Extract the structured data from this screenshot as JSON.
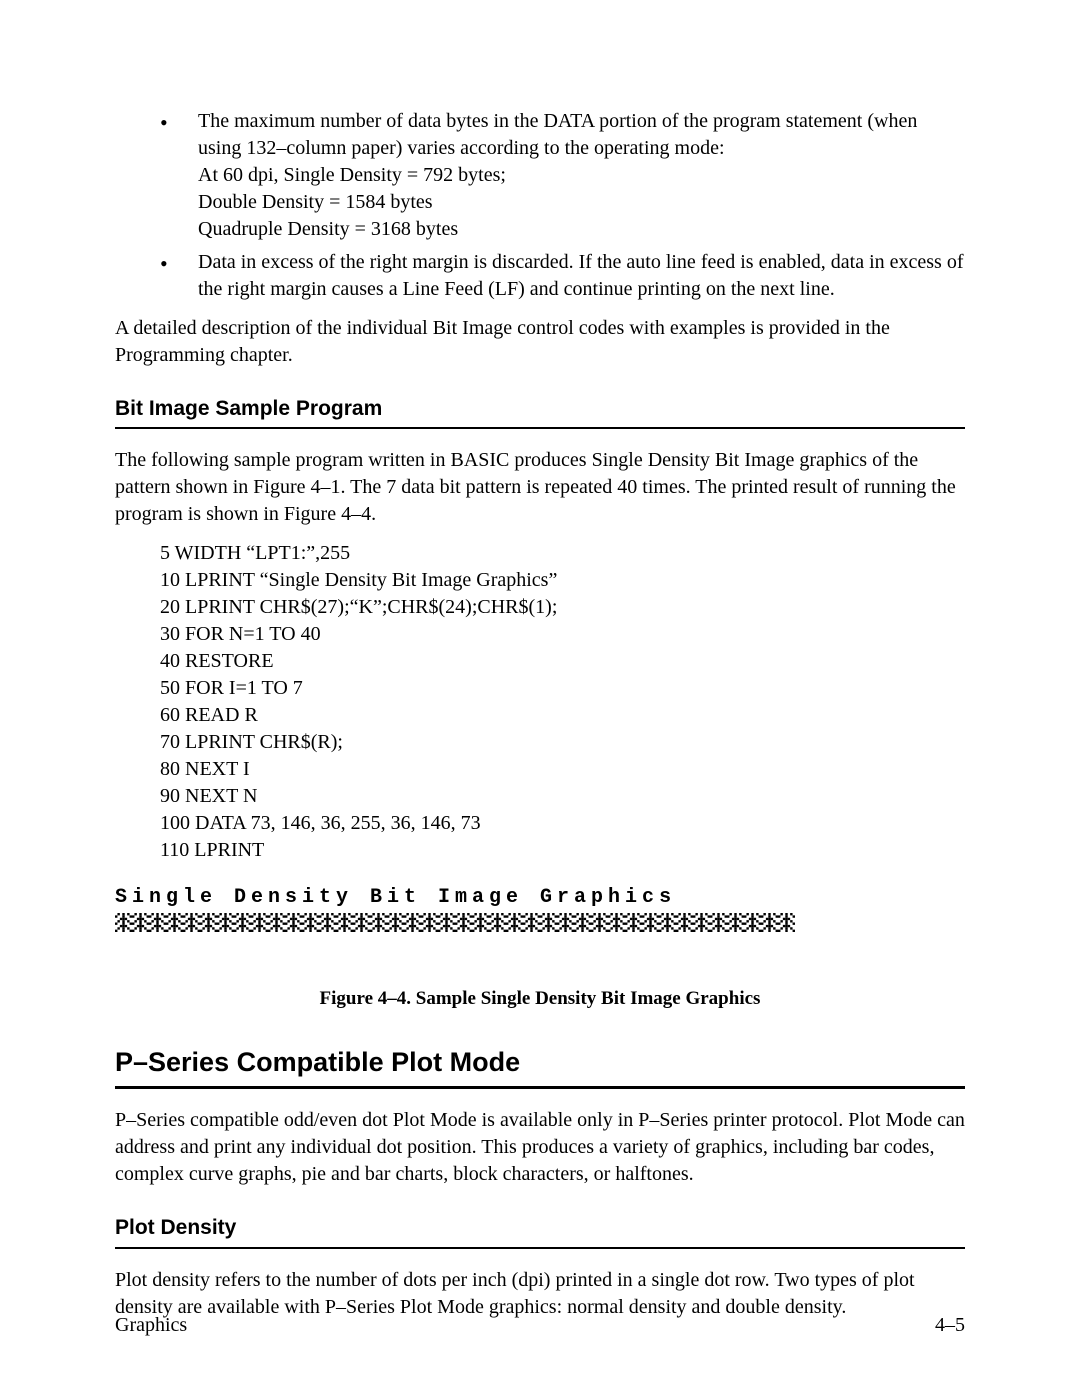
{
  "bullets": [
    {
      "main": "The maximum number of data bytes in the DATA portion of the program statement (when using 132–column paper) varies according to the operating mode:",
      "sub": [
        "At 60 dpi, Single Density = 792 bytes;",
        "Double Density = 1584 bytes",
        "Quadruple Density = 3168 bytes"
      ]
    },
    {
      "main": "Data in excess of the right margin is discarded. If the auto line feed is enabled, data in excess of the right margin causes a Line Feed (LF) and continue printing on the next line.",
      "sub": []
    }
  ],
  "para_after_bullets": "A detailed description of the individual Bit Image control codes with examples is provided in the Programming chapter.",
  "section1_title": "Bit Image Sample Program",
  "section1_para": "The following sample program written in BASIC produces Single Density Bit Image graphics of the pattern shown in Figure 4–1. The 7 data bit pattern is repeated 40 times. The printed result of running the program is shown in Figure 4–4.",
  "code_lines": "5 WIDTH “LPT1:”,255\n10 LPRINT “Single Density Bit Image Graphics”\n20 LPRINT CHR$(27);“K”;CHR$(24);CHR$(1);\n30 FOR N=1 TO 40\n40 RESTORE\n50 FOR I=1 TO 7\n60 READ R\n70 LPRINT CHR$(R);\n80 NEXT I\n90 NEXT N\n100 DATA 73, 146, 36, 255, 36, 146, 73\n110 LPRINT",
  "printer_title": "Single Density Bit Image Graphics",
  "pattern": {
    "repeat": 40,
    "unit_width": 17,
    "unit_height": 19,
    "data": [
      73,
      146,
      36,
      255,
      36,
      146,
      73
    ]
  },
  "figure_caption": "Figure 4–4. Sample Single Density Bit Image Graphics",
  "main_heading": "P–Series Compatible Plot Mode",
  "main_para": "P–Series compatible odd/even dot Plot Mode is available only in P–Series printer protocol. Plot Mode can address and print any individual dot position. This produces a variety of graphics, including bar codes, complex curve graphs, pie and bar charts, block characters, or halftones.",
  "section2_title": "Plot Density",
  "section2_para": "Plot density refers to the number of dots per inch (dpi) printed in a single dot row. Two types of plot density are available with P–Series Plot Mode graphics: normal density and double density.",
  "footer_left": "Graphics",
  "footer_right": "4–5"
}
